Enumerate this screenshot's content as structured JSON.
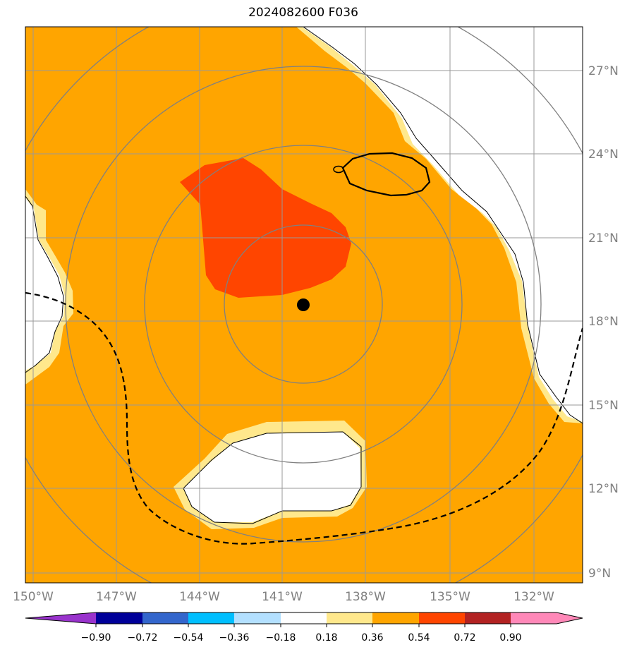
{
  "title": "2024082600 F036",
  "lon_labels": [
    "150°W",
    "147°W",
    "144°W",
    "141°W",
    "138°W",
    "135°W",
    "132°W"
  ],
  "lat_labels": [
    "27°N",
    "24°N",
    "21°N",
    "18°N",
    "15°N",
    "12°N",
    "9°N"
  ],
  "colorbar": {
    "ticks": [
      "−0.90",
      "−0.72",
      "−0.54",
      "−0.36",
      "−0.18",
      "0.18",
      "0.36",
      "0.54",
      "0.72",
      "0.90"
    ],
    "colors": [
      "#9933cc",
      "#000099",
      "#3366cc",
      "#00bfff",
      "#b3e0ff",
      "#ffffff",
      "#ffe88c",
      "#ffa500",
      "#ff4500",
      "#b22222",
      "#ff88b8"
    ]
  },
  "colors": {
    "field_main": "#ffa500",
    "field_high": "#ff4500",
    "field_low": "#ffe88c",
    "grid": "#999999",
    "range_rings": "#808080"
  },
  "center_marker": "storm-center"
}
